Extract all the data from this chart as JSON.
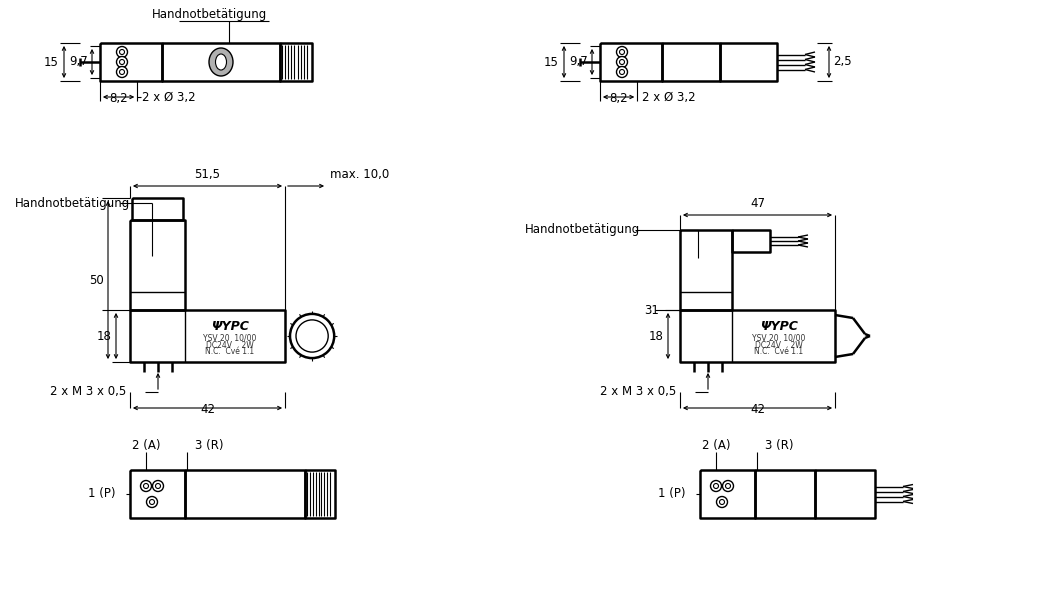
{
  "bg_color": "#ffffff",
  "lc": "#000000",
  "views": {
    "left_top": {
      "label": "Handnotbetätigung",
      "dim_15": "15",
      "dim_9_7": "9,7",
      "dim_8_2": "8,2",
      "dim_hole": "2 x Ø 3,2"
    },
    "right_top": {
      "dim_15": "15",
      "dim_9_7": "9,7",
      "dim_8_2": "8,2",
      "dim_hole": "2 x Ø 3,2",
      "dim_2_5": "2,5"
    },
    "left_mid": {
      "label_51_5": "51,5",
      "label_max": "max. 10,0",
      "label_hand": "Handnotbetätigung",
      "dim_50": "50",
      "dim_18": "18",
      "dim_m3": "2 x M 3 x 0,5",
      "dim_42": "42",
      "ypc_line1": "YSV 20  10/00",
      "ypc_line2": "DC24V    2W",
      "ypc_line3": "N.C.  Cvé 1.1"
    },
    "right_mid": {
      "label_47": "47",
      "label_hand": "Handnotbetätigung",
      "dim_31": "31",
      "dim_18": "18",
      "dim_m3": "2 x M 3 x 0,5",
      "dim_42": "42",
      "ypc_line1": "YSV 20  10/00",
      "ypc_line2": "DC24V    2W",
      "ypc_line3": "N.C.  Cvé 1.1"
    },
    "left_bot": {
      "port1": "1 (P)",
      "port2": "2 (A)",
      "port3": "3 (R)"
    },
    "right_bot": {
      "port1": "1 (P)",
      "port2": "2 (A)",
      "port3": "3 (R)"
    }
  }
}
